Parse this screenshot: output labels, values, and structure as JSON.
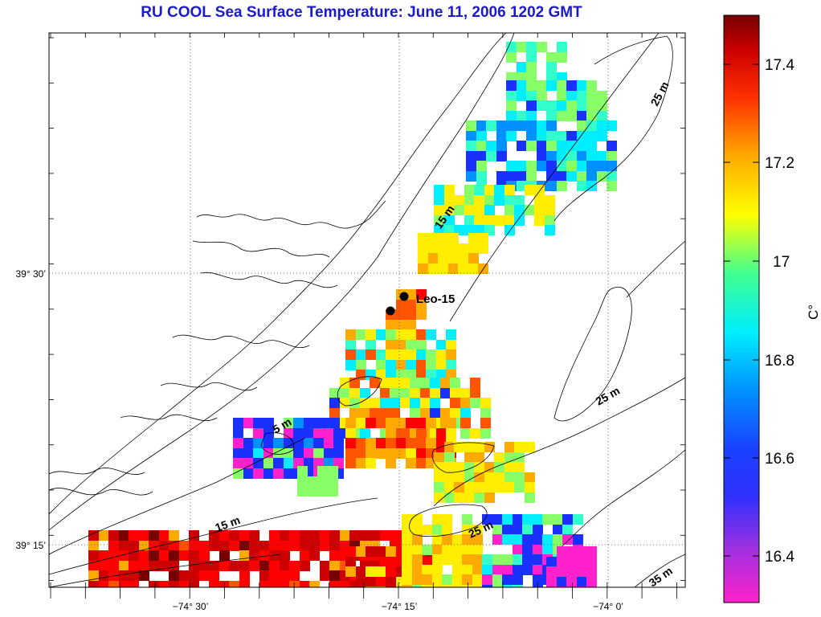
{
  "title": "RU COOL  Sea Surface Temperature:  June 11, 2006 1202 GMT",
  "axes": {
    "x_ticks": [
      "−74° 30’",
      "−74° 15’",
      "−74° 0’"
    ],
    "y_ticks": [
      "39° 30’",
      "39° 15’"
    ]
  },
  "station": {
    "label": "Leo-15"
  },
  "contours": [
    "25 m",
    "15 m",
    "25 m",
    "5 m",
    "15 m",
    "25 m",
    "35 m"
  ],
  "colorbar": {
    "unit": "C°",
    "ticks": [
      "17.4",
      "17.2",
      "17",
      "16.8",
      "16.6",
      "16.4"
    ],
    "min": 16.3,
    "max": 17.5,
    "colors": [
      "#ff22cc",
      "#2222ff",
      "#00ccff",
      "#33ff99",
      "#ffff00",
      "#ff8800",
      "#ff0000",
      "#770000"
    ]
  }
}
